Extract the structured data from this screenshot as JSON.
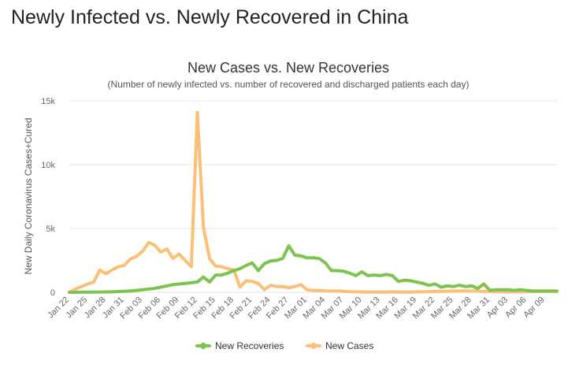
{
  "page": {
    "heading": "Newly Infected vs. Newly Recovered in China"
  },
  "chart_data": {
    "type": "line",
    "title": "New Cases vs. New Recoveries",
    "subtitle": "(Number of newly infected vs. number of recovered and discharged patients each day)",
    "ylabel": "New Daily Coronavirus Cases+Cured",
    "xlabel": "",
    "ylim": [
      0,
      15000
    ],
    "yticks": [
      0,
      5000,
      10000,
      15000
    ],
    "ytick_labels": [
      "0",
      "5k",
      "10k",
      "15k"
    ],
    "grid": true,
    "legend_position": "bottom-center",
    "x": [
      "Jan 22",
      "Jan 23",
      "Jan 24",
      "Jan 25",
      "Jan 26",
      "Jan 27",
      "Jan 28",
      "Jan 29",
      "Jan 30",
      "Jan 31",
      "Feb 01",
      "Feb 02",
      "Feb 03",
      "Feb 04",
      "Feb 05",
      "Feb 06",
      "Feb 07",
      "Feb 08",
      "Feb 09",
      "Feb 10",
      "Feb 11",
      "Feb 12",
      "Feb 13",
      "Feb 14",
      "Feb 15",
      "Feb 16",
      "Feb 17",
      "Feb 18",
      "Feb 19",
      "Feb 20",
      "Feb 21",
      "Feb 22",
      "Feb 23",
      "Feb 24",
      "Feb 25",
      "Feb 26",
      "Feb 27",
      "Feb 28",
      "Feb 29",
      "Mar 01",
      "Mar 02",
      "Mar 03",
      "Mar 04",
      "Mar 05",
      "Mar 06",
      "Mar 07",
      "Mar 08",
      "Mar 09",
      "Mar 10",
      "Mar 11",
      "Mar 12",
      "Mar 13",
      "Mar 14",
      "Mar 15",
      "Mar 16",
      "Mar 17",
      "Mar 18",
      "Mar 19",
      "Mar 20",
      "Mar 21",
      "Mar 22",
      "Mar 23",
      "Mar 24",
      "Mar 25",
      "Mar 26",
      "Mar 27",
      "Mar 28",
      "Mar 29",
      "Mar 30",
      "Mar 31",
      "Apr 01",
      "Apr 02",
      "Apr 03",
      "Apr 04",
      "Apr 05",
      "Apr 06",
      "Apr 07",
      "Apr 08",
      "Apr 09",
      "Apr 10",
      "Apr 11"
    ],
    "x_tick_labels": [
      "Jan 22",
      "Jan 25",
      "Jan 28",
      "Jan 31",
      "Feb 03",
      "Feb 06",
      "Feb 09",
      "Feb 12",
      "Feb 15",
      "Feb 18",
      "Feb 21",
      "Feb 24",
      "Feb 27",
      "Mar 01",
      "Mar 04",
      "Mar 07",
      "Mar 10",
      "Mar 13",
      "Mar 16",
      "Mar 19",
      "Mar 22",
      "Mar 25",
      "Mar 28",
      "Mar 31",
      "Apr 03",
      "Apr 06",
      "Apr 09"
    ],
    "series": [
      {
        "name": "New Recoveries",
        "color": "#7cc44e",
        "values": [
          0,
          2,
          5,
          8,
          10,
          20,
          30,
          40,
          60,
          80,
          100,
          150,
          200,
          250,
          300,
          400,
          500,
          600,
          650,
          700,
          750,
          800,
          1200,
          800,
          1350,
          1350,
          1500,
          1700,
          1850,
          2100,
          2300,
          1700,
          2250,
          2450,
          2500,
          2650,
          3650,
          2900,
          2850,
          2700,
          2700,
          2650,
          2300,
          1700,
          1700,
          1650,
          1500,
          1300,
          1600,
          1300,
          1350,
          1300,
          1400,
          1300,
          850,
          950,
          900,
          800,
          700,
          550,
          650,
          400,
          500,
          450,
          550,
          450,
          500,
          300,
          650,
          150,
          200,
          200,
          200,
          150,
          200,
          150,
          100,
          100,
          100,
          100,
          100
        ]
      },
      {
        "name": "New Cases",
        "color": "#fbbf77",
        "values": [
          0,
          250,
          450,
          650,
          800,
          1750,
          1450,
          1750,
          2000,
          2100,
          2600,
          2800,
          3200,
          3900,
          3700,
          3150,
          3400,
          2650,
          3000,
          2500,
          2000,
          14100,
          5100,
          2650,
          2050,
          2000,
          1850,
          1750,
          400,
          900,
          850,
          700,
          200,
          550,
          450,
          450,
          350,
          450,
          600,
          200,
          150,
          150,
          120,
          100,
          100,
          80,
          50,
          40,
          30,
          20,
          20,
          15,
          20,
          30,
          20,
          15,
          20,
          30,
          40,
          50,
          60,
          70,
          80,
          90,
          100,
          100,
          100,
          80,
          70,
          60,
          50,
          40,
          30,
          30,
          40,
          50,
          60,
          60,
          60,
          60,
          50
        ]
      }
    ]
  }
}
